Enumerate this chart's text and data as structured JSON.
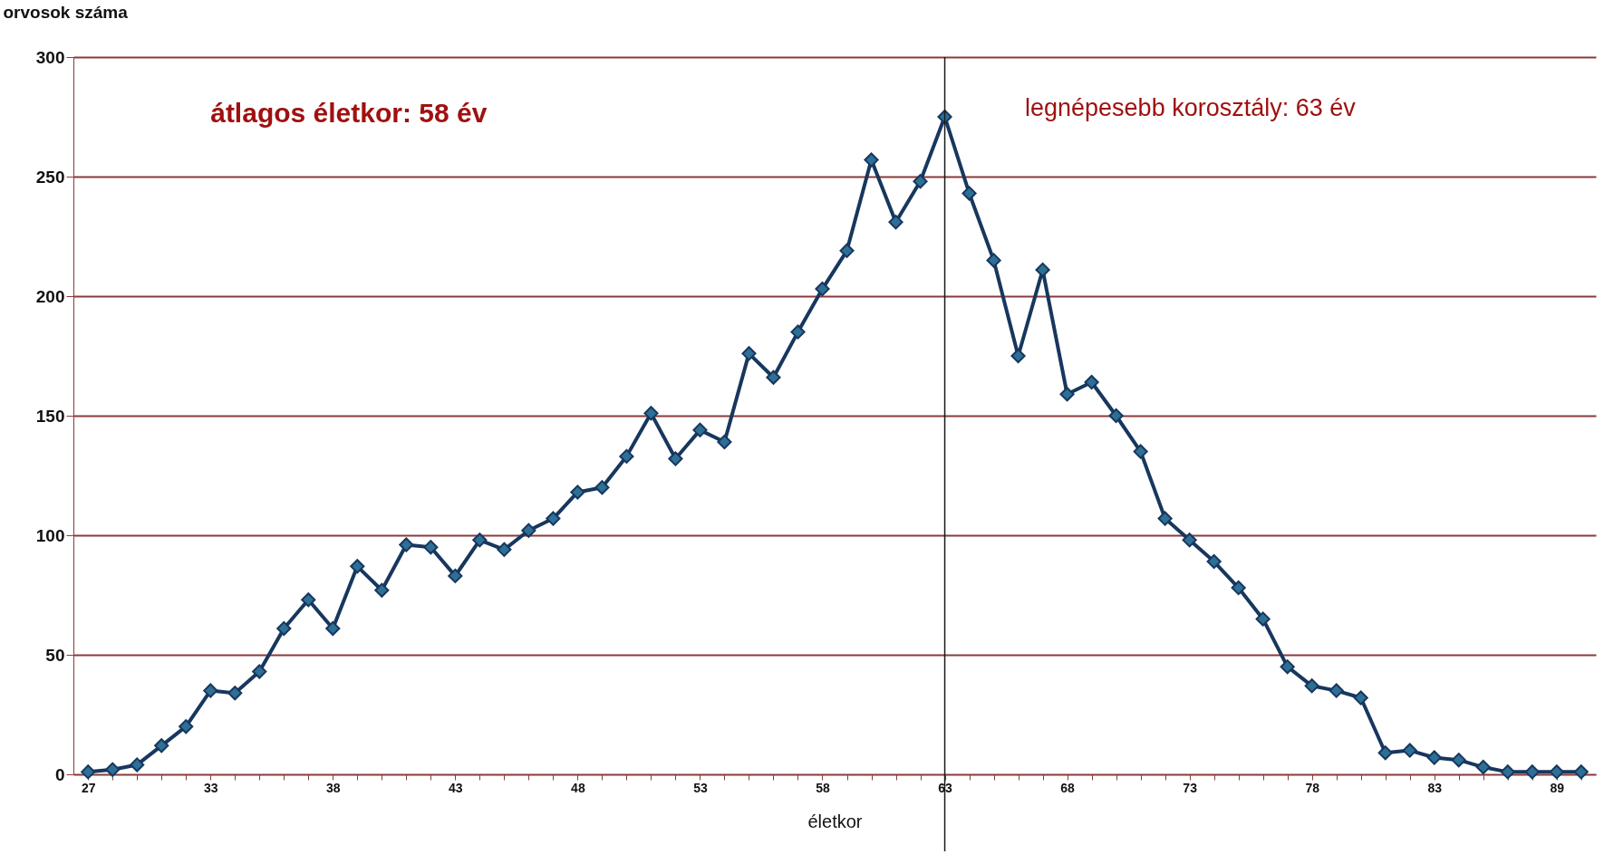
{
  "chart_data": {
    "type": "line",
    "xlabel": "életkor",
    "ylabel": "orvosok száma",
    "categories": [
      "27",
      null,
      null,
      null,
      null,
      "33",
      null,
      null,
      null,
      null,
      "38",
      null,
      null,
      null,
      null,
      "43",
      null,
      null,
      null,
      null,
      "48",
      null,
      null,
      null,
      null,
      "53",
      null,
      null,
      null,
      null,
      "58",
      null,
      null,
      null,
      null,
      "63",
      null,
      null,
      null,
      null,
      "68",
      null,
      null,
      null,
      null,
      "73",
      null,
      null,
      null,
      null,
      "78",
      null,
      null,
      null,
      null,
      "83",
      null,
      null,
      null,
      null,
      "89",
      null
    ],
    "series": [
      {
        "color": "#17375e",
        "values": [
          1,
          2,
          4,
          12,
          20,
          35,
          34,
          43,
          61,
          73,
          61,
          87,
          77,
          96,
          95,
          83,
          98,
          94,
          102,
          107,
          118,
          120,
          133,
          151,
          132,
          144,
          139,
          176,
          166,
          185,
          203,
          219,
          257,
          231,
          248,
          275,
          243,
          215,
          175,
          211,
          159,
          164,
          150,
          135,
          107,
          98,
          89,
          78,
          65,
          45,
          37,
          35,
          32,
          9,
          10,
          7,
          6,
          3,
          1,
          1,
          1,
          1
        ]
      }
    ],
    "ylim": [
      0,
      300
    ],
    "yticks": [
      0,
      50,
      100,
      150,
      200,
      250,
      300
    ],
    "grid": "y",
    "marker": "diamond",
    "line_style": "solid",
    "ref_lines": [
      {
        "axis": "x",
        "value": "63",
        "color": "#1a1a1a"
      }
    ],
    "annotations": [
      "átlagos életkor: 58 év",
      "legnépesebb korosztály: 63 év"
    ]
  }
}
